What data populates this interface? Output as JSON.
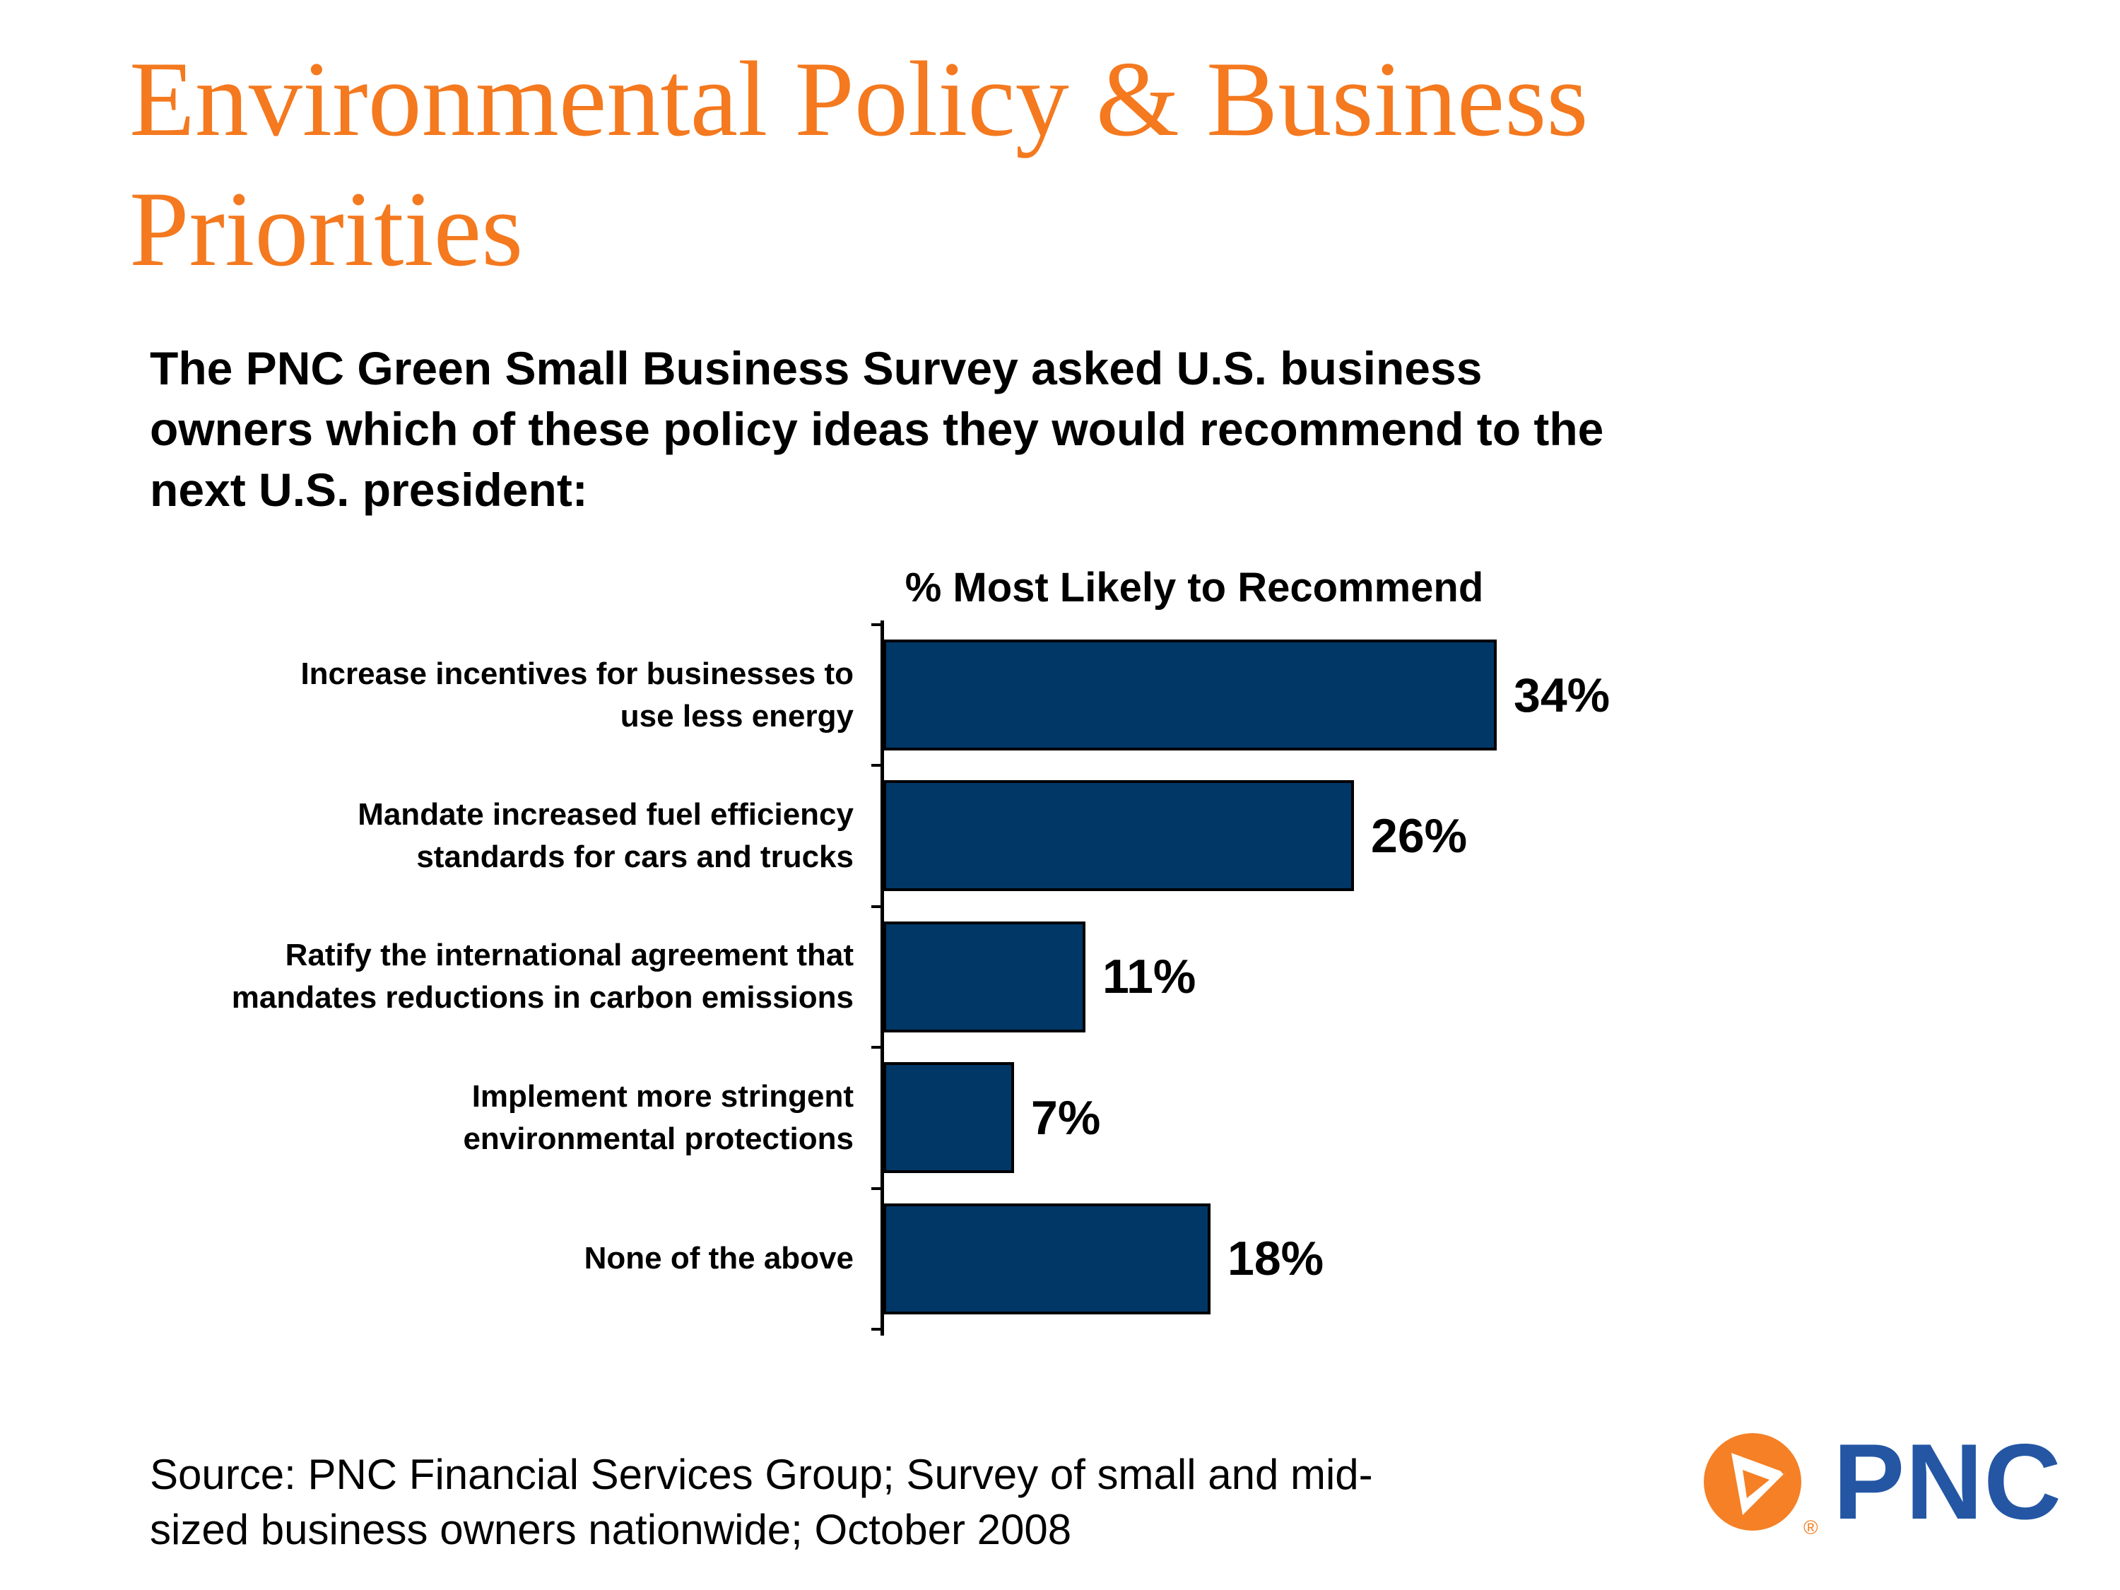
{
  "slide": {
    "title": "Environmental Policy & Business\nPriorities",
    "intro": "The PNC Green Small Business Survey asked U.S. business\nowners which of these policy ideas they would recommend to the\nnext U.S. president:",
    "source": "Source: PNC Financial Services Group; Survey of small and mid-\nsized business owners nationwide; October 2008"
  },
  "chart_data": {
    "type": "bar",
    "orientation": "horizontal",
    "title": "% Most Likely to Recommend",
    "categories": [
      "Increase incentives for businesses to\nuse less energy",
      "Mandate increased fuel efficiency\nstandards for cars and trucks",
      "Ratify the international agreement that\nmandates reductions in carbon emissions",
      "Implement more stringent\nenvironmental protections",
      "None of the above"
    ],
    "values": [
      34,
      26,
      11,
      7,
      18
    ],
    "value_labels": [
      "34%",
      "26%",
      "11%",
      "7%",
      "18%"
    ],
    "xlim": [
      0,
      40
    ],
    "grid": false,
    "legend": "none",
    "bar_color": "#003767",
    "bar_border_color": "#000000",
    "axis_color": "#000000"
  },
  "logo": {
    "name": "PNC",
    "registered_mark": "®",
    "orange": "#F58025",
    "blue": "#2456A4"
  },
  "colors": {
    "title_orange": "#F4791F",
    "text": "#000000",
    "background": "#FFFFFF"
  }
}
